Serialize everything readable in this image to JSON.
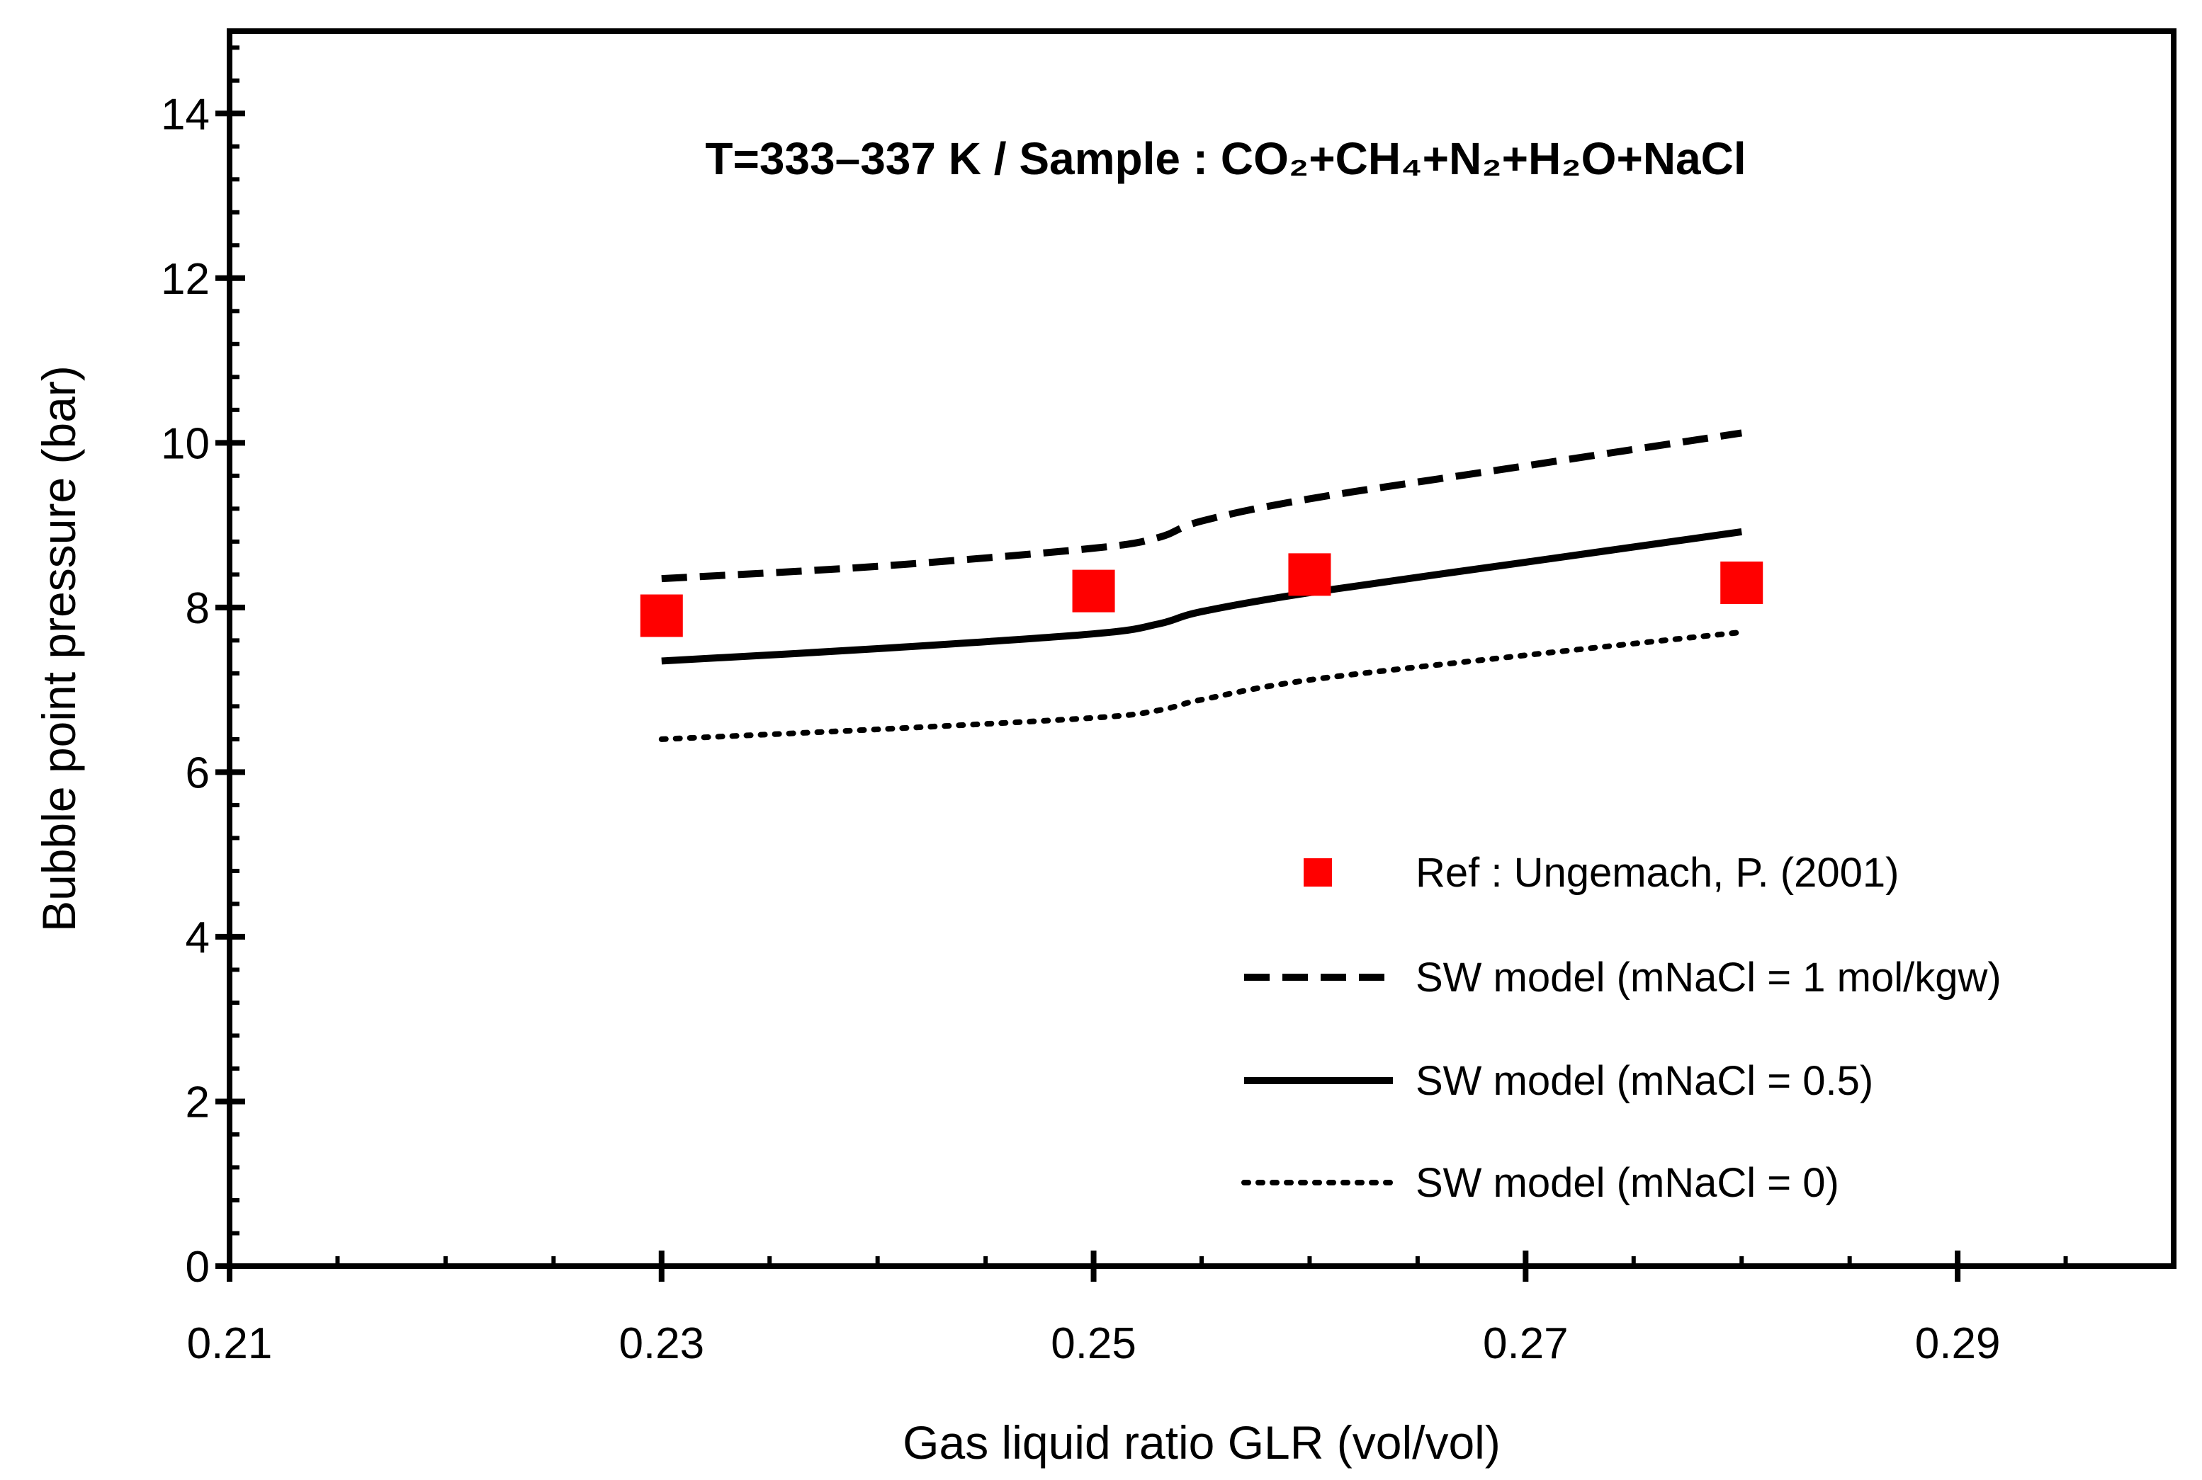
{
  "chart_data": {
    "type": "line",
    "title": "T=333–337 K / Sample : CO₂+CH₄+N₂+H₂O+NaCl",
    "xlabel": "Gas liquid ratio GLR (vol/vol)",
    "ylabel": "Bubble point pressure  (bar)",
    "xlim": [
      0.21,
      0.3
    ],
    "ylim": [
      0,
      15
    ],
    "x_ticks": [
      "0.21",
      "0.23",
      "0.25",
      "0.27",
      "0.29"
    ],
    "y_ticks": [
      "0",
      "2",
      "4",
      "6",
      "8",
      "10",
      "12",
      "14"
    ],
    "grid": false,
    "legend_position": "bottom-right",
    "series": [
      {
        "name": "Ref : Ungemach, P. (2001)",
        "style": "marker",
        "color": "#ff0000",
        "x": [
          0.23,
          0.25,
          0.26,
          0.28
        ],
        "y": [
          7.9,
          8.2,
          8.4,
          8.3
        ]
      },
      {
        "name": "SW model (mNaCl = 1 mol/kgw)",
        "style": "dashed",
        "color": "#000000",
        "x": [
          0.23,
          0.24,
          0.25,
          0.253,
          0.255,
          0.26,
          0.27,
          0.28
        ],
        "y": [
          8.35,
          8.5,
          8.72,
          8.85,
          9.05,
          9.32,
          9.72,
          10.12
        ]
      },
      {
        "name": "SW model (mNaCl = 0.5)",
        "style": "solid",
        "color": "#000000",
        "x": [
          0.23,
          0.24,
          0.25,
          0.253,
          0.255,
          0.26,
          0.27,
          0.28
        ],
        "y": [
          7.35,
          7.5,
          7.68,
          7.8,
          7.95,
          8.18,
          8.55,
          8.92
        ]
      },
      {
        "name": "SW model (mNaCl = 0)",
        "style": "dotted",
        "color": "#000000",
        "x": [
          0.23,
          0.24,
          0.25,
          0.253,
          0.255,
          0.26,
          0.27,
          0.28
        ],
        "y": [
          6.4,
          6.52,
          6.66,
          6.75,
          6.88,
          7.12,
          7.42,
          7.7
        ]
      }
    ]
  }
}
